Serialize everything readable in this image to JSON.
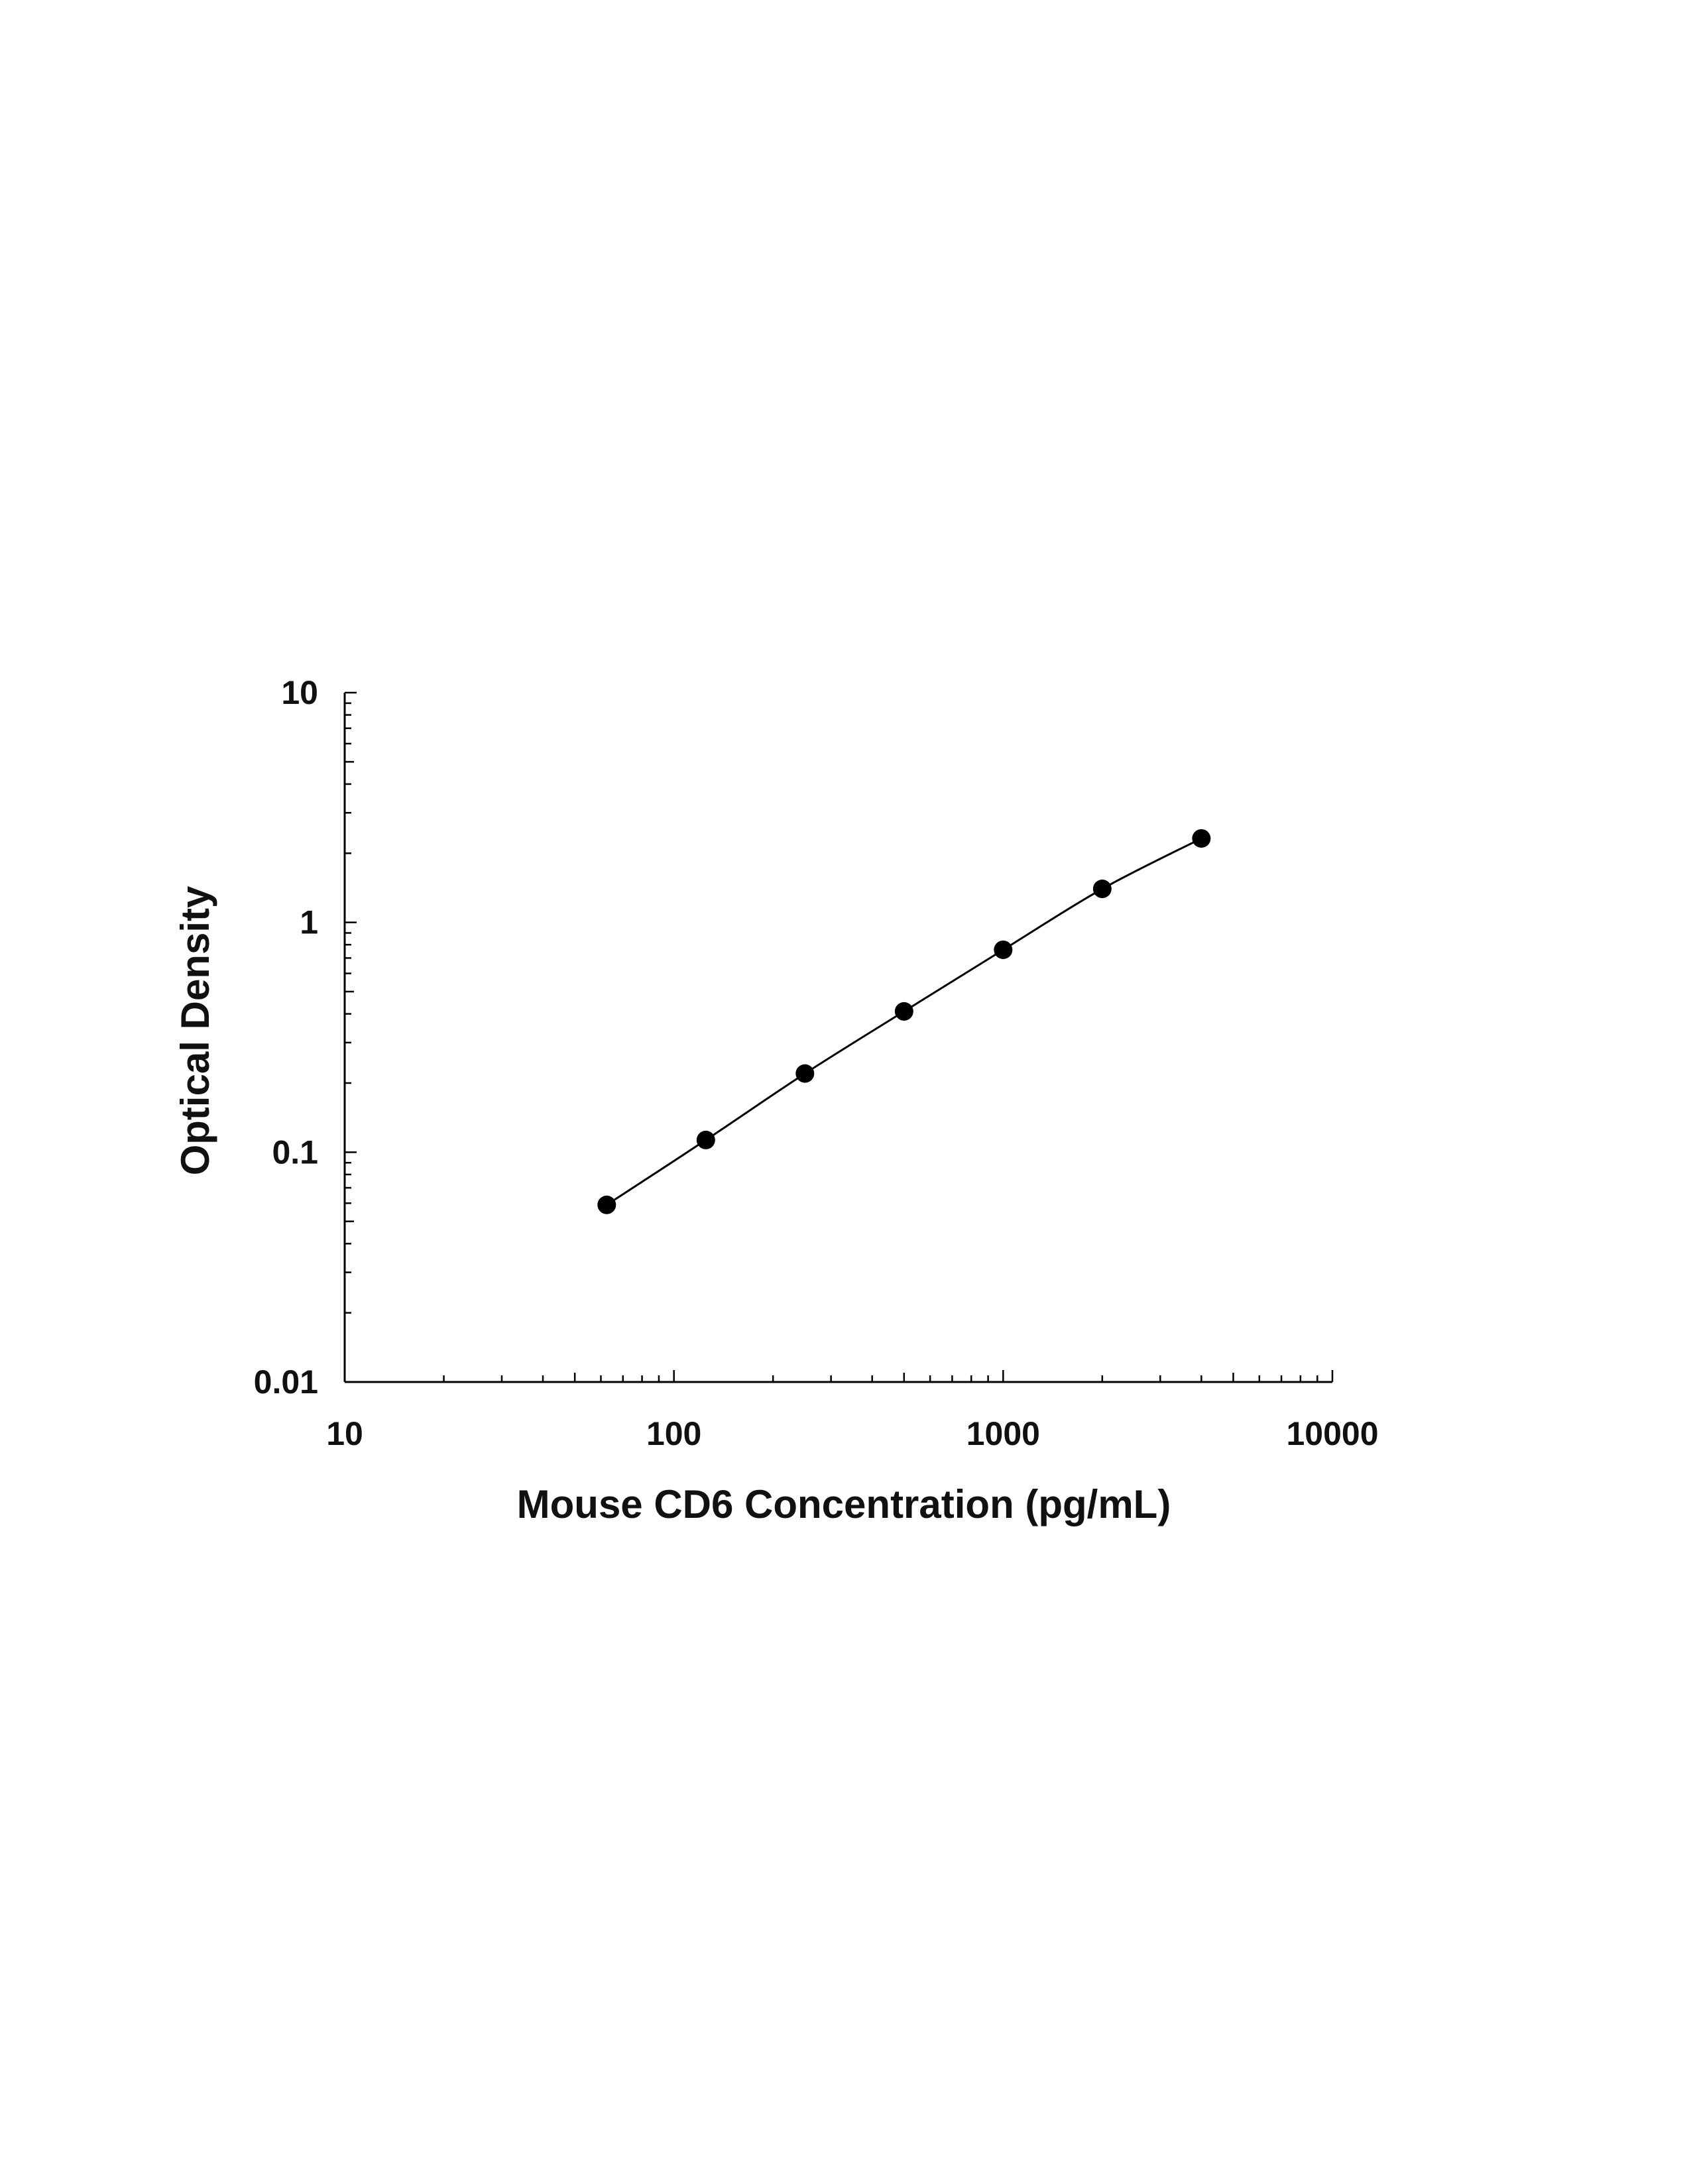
{
  "chart_data": {
    "type": "scatter",
    "title": "",
    "xlabel": "Mouse CD6 Concentration (pg/mL)",
    "ylabel": "Optical Density",
    "x_scale": "log",
    "y_scale": "log",
    "xlim": [
      10,
      10000
    ],
    "ylim": [
      0.01,
      10
    ],
    "x_tick_labels": [
      "10",
      "100",
      "1000",
      "10000"
    ],
    "y_tick_labels": [
      "0.01",
      "0.1",
      "1",
      "10"
    ],
    "grid": false,
    "legend": "none",
    "series": [
      {
        "x": [
          62.5,
          125,
          250,
          500,
          1000,
          2000,
          4000
        ],
        "y": [
          0.059,
          0.113,
          0.22,
          0.41,
          0.76,
          1.4,
          2.32
        ],
        "marker": "filled-circle",
        "fit_curve": true
      }
    ],
    "colors": {
      "marker": "#000000",
      "line": "#000000",
      "axis": "#000000"
    }
  }
}
